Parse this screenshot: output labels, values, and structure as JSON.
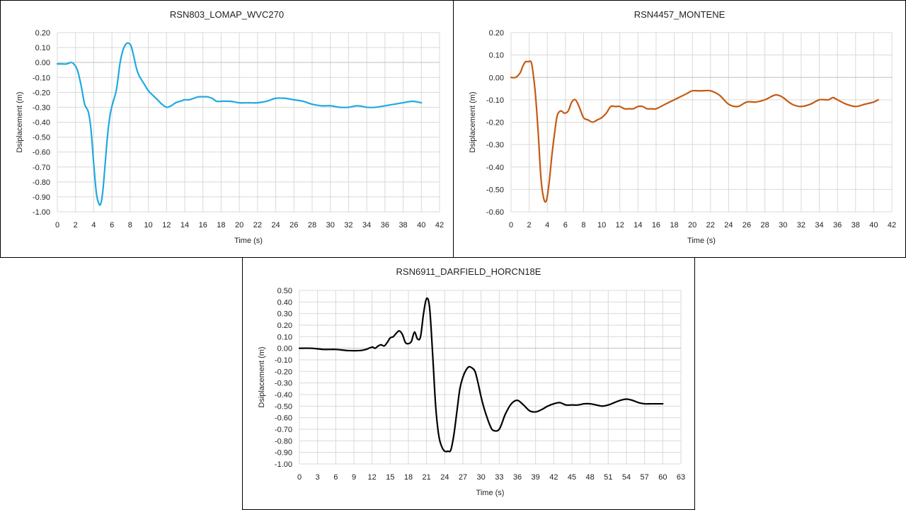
{
  "chart_data": [
    {
      "type": "line",
      "title": "RSN803_LOMAP_WVC270",
      "xlabel": "Time (s)",
      "ylabel": "Dsiplacement (m)",
      "xlim": [
        0,
        42
      ],
      "ylim": [
        -1.0,
        0.2
      ],
      "x_ticks": [
        "0",
        "2",
        "4",
        "6",
        "8",
        "10",
        "12",
        "14",
        "16",
        "18",
        "20",
        "22",
        "24",
        "26",
        "28",
        "30",
        "32",
        "34",
        "36",
        "38",
        "40",
        "42"
      ],
      "y_ticks": [
        "0.20",
        "0.10",
        "0.00",
        "-0.10",
        "-0.20",
        "-0.30",
        "-0.40",
        "-0.50",
        "-0.60",
        "-0.70",
        "-0.80",
        "-0.90",
        "-1.00"
      ],
      "grid": true,
      "color": "#1fa9e1",
      "series": [
        {
          "x": [
            0,
            0.5,
            1.0,
            1.5,
            1.8,
            2.2,
            2.6,
            3.0,
            3.4,
            3.7,
            4.0,
            4.3,
            4.6,
            4.8,
            5.0,
            5.2,
            5.5,
            5.8,
            6.1,
            6.5,
            6.9,
            7.2,
            7.5,
            7.8,
            8.1,
            8.4,
            8.7,
            9.0,
            9.5,
            10.0,
            10.5,
            11.0,
            11.5,
            12.0,
            12.5,
            13.0,
            13.5,
            14.0,
            14.5,
            15.0,
            15.5,
            16.0,
            16.5,
            17.0,
            17.5,
            18.0,
            19.0,
            20.0,
            21.0,
            22.0,
            23.0,
            24.0,
            25.0,
            26.0,
            27.0,
            28.0,
            29.0,
            30.0,
            31.0,
            32.0,
            33.0,
            34.0,
            35.0,
            36.0,
            37.0,
            38.0,
            39.0,
            40.0
          ],
          "y": [
            -0.01,
            -0.01,
            -0.01,
            0.0,
            -0.01,
            -0.05,
            -0.15,
            -0.28,
            -0.33,
            -0.45,
            -0.68,
            -0.88,
            -0.95,
            -0.94,
            -0.86,
            -0.72,
            -0.5,
            -0.35,
            -0.27,
            -0.18,
            0.0,
            0.08,
            0.12,
            0.13,
            0.11,
            0.04,
            -0.04,
            -0.09,
            -0.14,
            -0.19,
            -0.22,
            -0.25,
            -0.28,
            -0.3,
            -0.29,
            -0.27,
            -0.26,
            -0.25,
            -0.25,
            -0.24,
            -0.23,
            -0.23,
            -0.23,
            -0.24,
            -0.26,
            -0.26,
            -0.26,
            -0.27,
            -0.27,
            -0.27,
            -0.26,
            -0.24,
            -0.24,
            -0.25,
            -0.26,
            -0.28,
            -0.29,
            -0.29,
            -0.3,
            -0.3,
            -0.29,
            -0.3,
            -0.3,
            -0.29,
            -0.28,
            -0.27,
            -0.26,
            -0.27
          ]
        }
      ]
    },
    {
      "type": "line",
      "title": "RSN4457_MONTENE",
      "xlabel": "Time (s)",
      "ylabel": "Dsiplacement (m)",
      "xlim": [
        0,
        42
      ],
      "ylim": [
        -0.6,
        0.2
      ],
      "x_ticks": [
        "0",
        "2",
        "4",
        "6",
        "8",
        "10",
        "12",
        "14",
        "16",
        "18",
        "20",
        "22",
        "24",
        "26",
        "28",
        "30",
        "32",
        "34",
        "36",
        "38",
        "40",
        "42"
      ],
      "y_ticks": [
        "0.20",
        "0.10",
        "0.00",
        "-0.10",
        "-0.20",
        "-0.30",
        "-0.40",
        "-0.50",
        "-0.60"
      ],
      "grid": true,
      "color": "#c55a11",
      "series": [
        {
          "x": [
            0,
            0.5,
            1.0,
            1.3,
            1.6,
            1.9,
            2.2,
            2.4,
            2.7,
            3.0,
            3.3,
            3.6,
            3.9,
            4.2,
            4.5,
            4.8,
            5.1,
            5.5,
            5.9,
            6.3,
            6.7,
            7.1,
            7.5,
            8.0,
            8.5,
            9.0,
            9.5,
            10.0,
            10.5,
            11.0,
            11.5,
            12.0,
            12.5,
            13.0,
            13.5,
            14.0,
            14.5,
            15.0,
            15.5,
            16.0,
            17.0,
            18.0,
            19.0,
            19.5,
            20.0,
            21.0,
            22.0,
            23.0,
            24.0,
            25.0,
            26.0,
            27.0,
            28.0,
            29.0,
            29.5,
            30.0,
            31.0,
            32.0,
            33.0,
            34.0,
            35.0,
            35.5,
            36.0,
            37.0,
            38.0,
            39.0,
            40.0,
            40.5
          ],
          "y": [
            0.0,
            0.0,
            0.02,
            0.05,
            0.07,
            0.07,
            0.07,
            0.03,
            -0.08,
            -0.25,
            -0.45,
            -0.54,
            -0.55,
            -0.47,
            -0.35,
            -0.25,
            -0.17,
            -0.15,
            -0.16,
            -0.15,
            -0.11,
            -0.1,
            -0.13,
            -0.18,
            -0.19,
            -0.2,
            -0.19,
            -0.18,
            -0.16,
            -0.13,
            -0.13,
            -0.13,
            -0.14,
            -0.14,
            -0.14,
            -0.13,
            -0.13,
            -0.14,
            -0.14,
            -0.14,
            -0.12,
            -0.1,
            -0.08,
            -0.07,
            -0.06,
            -0.06,
            -0.06,
            -0.08,
            -0.12,
            -0.13,
            -0.11,
            -0.11,
            -0.1,
            -0.08,
            -0.08,
            -0.09,
            -0.12,
            -0.13,
            -0.12,
            -0.1,
            -0.1,
            -0.09,
            -0.1,
            -0.12,
            -0.13,
            -0.12,
            -0.11,
            -0.1
          ]
        }
      ]
    },
    {
      "type": "line",
      "title": "RSN6911_DARFIELD_HORCN18E",
      "xlabel": "Time (s)",
      "ylabel": "Dsiplacement (m)",
      "xlim": [
        0,
        63
      ],
      "ylim": [
        -1.0,
        0.5
      ],
      "x_ticks": [
        "0",
        "3",
        "6",
        "9",
        "12",
        "15",
        "18",
        "21",
        "24",
        "27",
        "30",
        "33",
        "36",
        "39",
        "42",
        "45",
        "48",
        "51",
        "54",
        "57",
        "60",
        "63"
      ],
      "y_ticks": [
        "0.50",
        "0.40",
        "0.30",
        "0.20",
        "0.10",
        "0.00",
        "-0.10",
        "-0.20",
        "-0.30",
        "-0.40",
        "-0.50",
        "-0.60",
        "-0.70",
        "-0.80",
        "-0.90",
        "-1.00"
      ],
      "grid": true,
      "color": "#000000",
      "series": [
        {
          "x": [
            0,
            2,
            4,
            6,
            8,
            10,
            11,
            12,
            12.5,
            13,
            13.5,
            14,
            14.5,
            15,
            15.5,
            16,
            16.5,
            17,
            17.5,
            18,
            18.5,
            19,
            19.5,
            20,
            20.5,
            21,
            21.5,
            22,
            22.5,
            23,
            23.5,
            24,
            24.5,
            25,
            25.5,
            26,
            26.5,
            27,
            27.5,
            28,
            28.5,
            29,
            29.5,
            30,
            30.5,
            31,
            31.5,
            32,
            33,
            34,
            35,
            36,
            37,
            38,
            39,
            40,
            41,
            42,
            43,
            44,
            45,
            46,
            47,
            48,
            49,
            50,
            51,
            52,
            53,
            54,
            55,
            56,
            57,
            58,
            59,
            60
          ],
          "y": [
            0.0,
            0.0,
            -0.01,
            -0.01,
            -0.02,
            -0.02,
            -0.01,
            0.01,
            0.0,
            0.02,
            0.03,
            0.02,
            0.05,
            0.09,
            0.1,
            0.13,
            0.15,
            0.12,
            0.05,
            0.04,
            0.06,
            0.14,
            0.08,
            0.1,
            0.3,
            0.43,
            0.35,
            -0.05,
            -0.5,
            -0.75,
            -0.85,
            -0.89,
            -0.89,
            -0.88,
            -0.75,
            -0.55,
            -0.35,
            -0.25,
            -0.19,
            -0.16,
            -0.17,
            -0.2,
            -0.3,
            -0.42,
            -0.52,
            -0.6,
            -0.67,
            -0.71,
            -0.7,
            -0.57,
            -0.48,
            -0.45,
            -0.49,
            -0.54,
            -0.55,
            -0.53,
            -0.5,
            -0.48,
            -0.47,
            -0.49,
            -0.49,
            -0.49,
            -0.48,
            -0.48,
            -0.49,
            -0.5,
            -0.49,
            -0.47,
            -0.45,
            -0.44,
            -0.45,
            -0.47,
            -0.48,
            -0.48,
            -0.48,
            -0.48
          ]
        }
      ]
    }
  ]
}
